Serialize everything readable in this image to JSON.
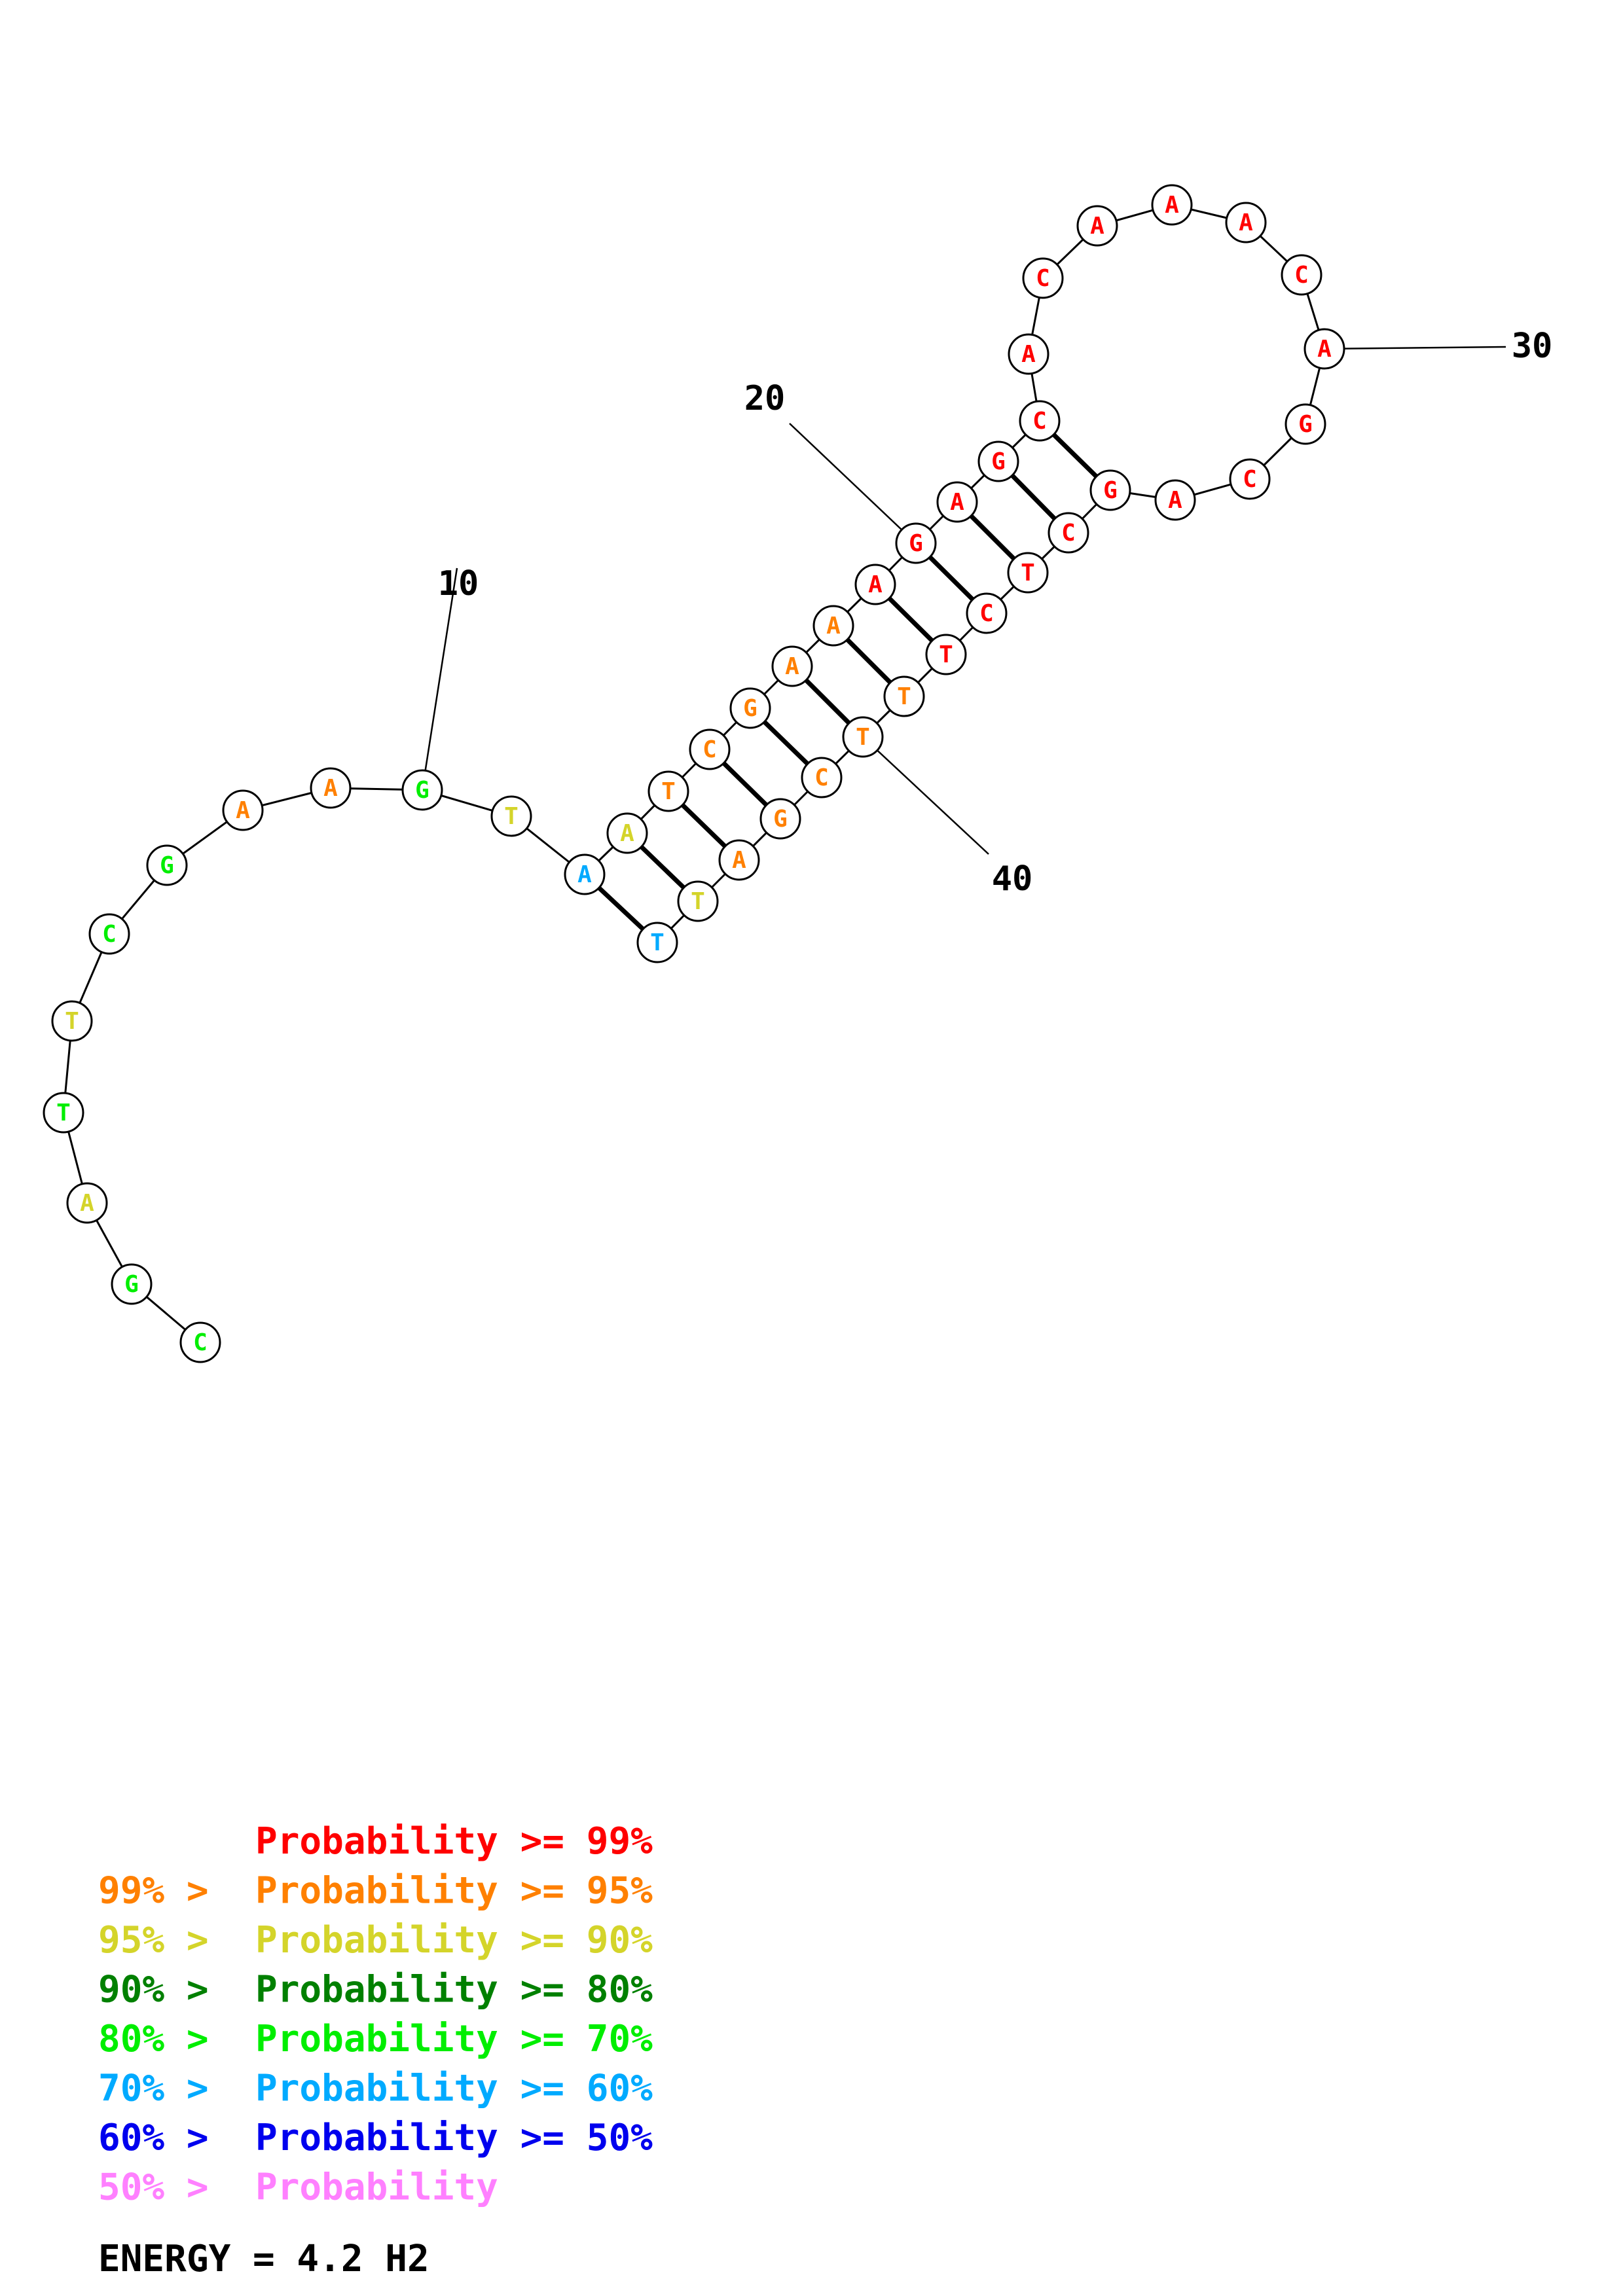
{
  "structure": {
    "nucleotides": [
      {
        "pos": 1,
        "base": "C",
        "level": "p80_70"
      },
      {
        "pos": 2,
        "base": "G",
        "level": "p80_70"
      },
      {
        "pos": 3,
        "base": "A",
        "level": "p95_90"
      },
      {
        "pos": 4,
        "base": "T",
        "level": "p80_70"
      },
      {
        "pos": 5,
        "base": "T",
        "level": "p95_90"
      },
      {
        "pos": 6,
        "base": "C",
        "level": "p80_70"
      },
      {
        "pos": 7,
        "base": "G",
        "level": "p80_70"
      },
      {
        "pos": 8,
        "base": "A",
        "level": "p99_95"
      },
      {
        "pos": 9,
        "base": "A",
        "level": "p99_95"
      },
      {
        "pos": 10,
        "base": "G",
        "level": "p80_70"
      },
      {
        "pos": 11,
        "base": "T",
        "level": "p95_90"
      },
      {
        "pos": 12,
        "base": "A",
        "level": "p70_60"
      },
      {
        "pos": 13,
        "base": "A",
        "level": "p95_90"
      },
      {
        "pos": 14,
        "base": "T",
        "level": "p99_95"
      },
      {
        "pos": 15,
        "base": "C",
        "level": "p99_95"
      },
      {
        "pos": 16,
        "base": "G",
        "level": "p99_95"
      },
      {
        "pos": 17,
        "base": "A",
        "level": "p99_95"
      },
      {
        "pos": 18,
        "base": "A",
        "level": "p99_95"
      },
      {
        "pos": 19,
        "base": "A",
        "level": "p99"
      },
      {
        "pos": 20,
        "base": "G",
        "level": "p99"
      },
      {
        "pos": 21,
        "base": "A",
        "level": "p99"
      },
      {
        "pos": 22,
        "base": "G",
        "level": "p99"
      },
      {
        "pos": 23,
        "base": "C",
        "level": "p99"
      },
      {
        "pos": 24,
        "base": "A",
        "level": "p99"
      },
      {
        "pos": 25,
        "base": "C",
        "level": "p99"
      },
      {
        "pos": 26,
        "base": "A",
        "level": "p99"
      },
      {
        "pos": 27,
        "base": "A",
        "level": "p99"
      },
      {
        "pos": 28,
        "base": "A",
        "level": "p99"
      },
      {
        "pos": 29,
        "base": "C",
        "level": "p99"
      },
      {
        "pos": 30,
        "base": "A",
        "level": "p99"
      },
      {
        "pos": 31,
        "base": "G",
        "level": "p99"
      },
      {
        "pos": 32,
        "base": "C",
        "level": "p99"
      },
      {
        "pos": 33,
        "base": "A",
        "level": "p99"
      },
      {
        "pos": 34,
        "base": "G",
        "level": "p99"
      },
      {
        "pos": 35,
        "base": "C",
        "level": "p99"
      },
      {
        "pos": 36,
        "base": "T",
        "level": "p99"
      },
      {
        "pos": 37,
        "base": "C",
        "level": "p99"
      },
      {
        "pos": 38,
        "base": "T",
        "level": "p99"
      },
      {
        "pos": 39,
        "base": "T",
        "level": "p99_95"
      },
      {
        "pos": 40,
        "base": "T",
        "level": "p99_95"
      },
      {
        "pos": 41,
        "base": "C",
        "level": "p99_95"
      },
      {
        "pos": 42,
        "base": "G",
        "level": "p99_95"
      },
      {
        "pos": 43,
        "base": "A",
        "level": "p99_95"
      },
      {
        "pos": 44,
        "base": "T",
        "level": "p95_90"
      },
      {
        "pos": 45,
        "base": "T",
        "level": "p70_60"
      }
    ],
    "pairs": [
      [
        12,
        45
      ],
      [
        13,
        44
      ],
      [
        14,
        43
      ],
      [
        15,
        42
      ],
      [
        16,
        41
      ],
      [
        17,
        40
      ],
      [
        18,
        39
      ],
      [
        19,
        38
      ],
      [
        20,
        37
      ],
      [
        21,
        36
      ],
      [
        22,
        35
      ],
      [
        23,
        34
      ]
    ],
    "position_labels": [
      {
        "pos": 10,
        "text": "10"
      },
      {
        "pos": 20,
        "text": "20"
      },
      {
        "pos": 30,
        "text": "30"
      },
      {
        "pos": 40,
        "text": "40"
      }
    ]
  },
  "colors": {
    "p99": "#ff0000",
    "p99_95": "#ff8000",
    "p95_90": "#d4d42a",
    "p90_80": "#008000",
    "p80_70": "#00ee00",
    "p70_60": "#00aaff",
    "p60_50": "#0000ee",
    "p50": "#ff80ff"
  },
  "legend": [
    {
      "prefix": "",
      "main": "Probability >= 99%",
      "level": "p99"
    },
    {
      "prefix": "99% > ",
      "main": "Probability >= 95%",
      "level": "p99_95"
    },
    {
      "prefix": "95% > ",
      "main": "Probability >= 90%",
      "level": "p95_90"
    },
    {
      "prefix": "90% > ",
      "main": "Probability >= 80%",
      "level": "p90_80"
    },
    {
      "prefix": "80% > ",
      "main": "Probability >= 70%",
      "level": "p80_70"
    },
    {
      "prefix": "70% > ",
      "main": "Probability >= 60%",
      "level": "p70_60"
    },
    {
      "prefix": "60% > ",
      "main": "Probability >= 50%",
      "level": "p60_50"
    },
    {
      "prefix": "50% > ",
      "main": "Probability",
      "level": "p50"
    }
  ],
  "energy": "ENERGY = 4.2  H2"
}
